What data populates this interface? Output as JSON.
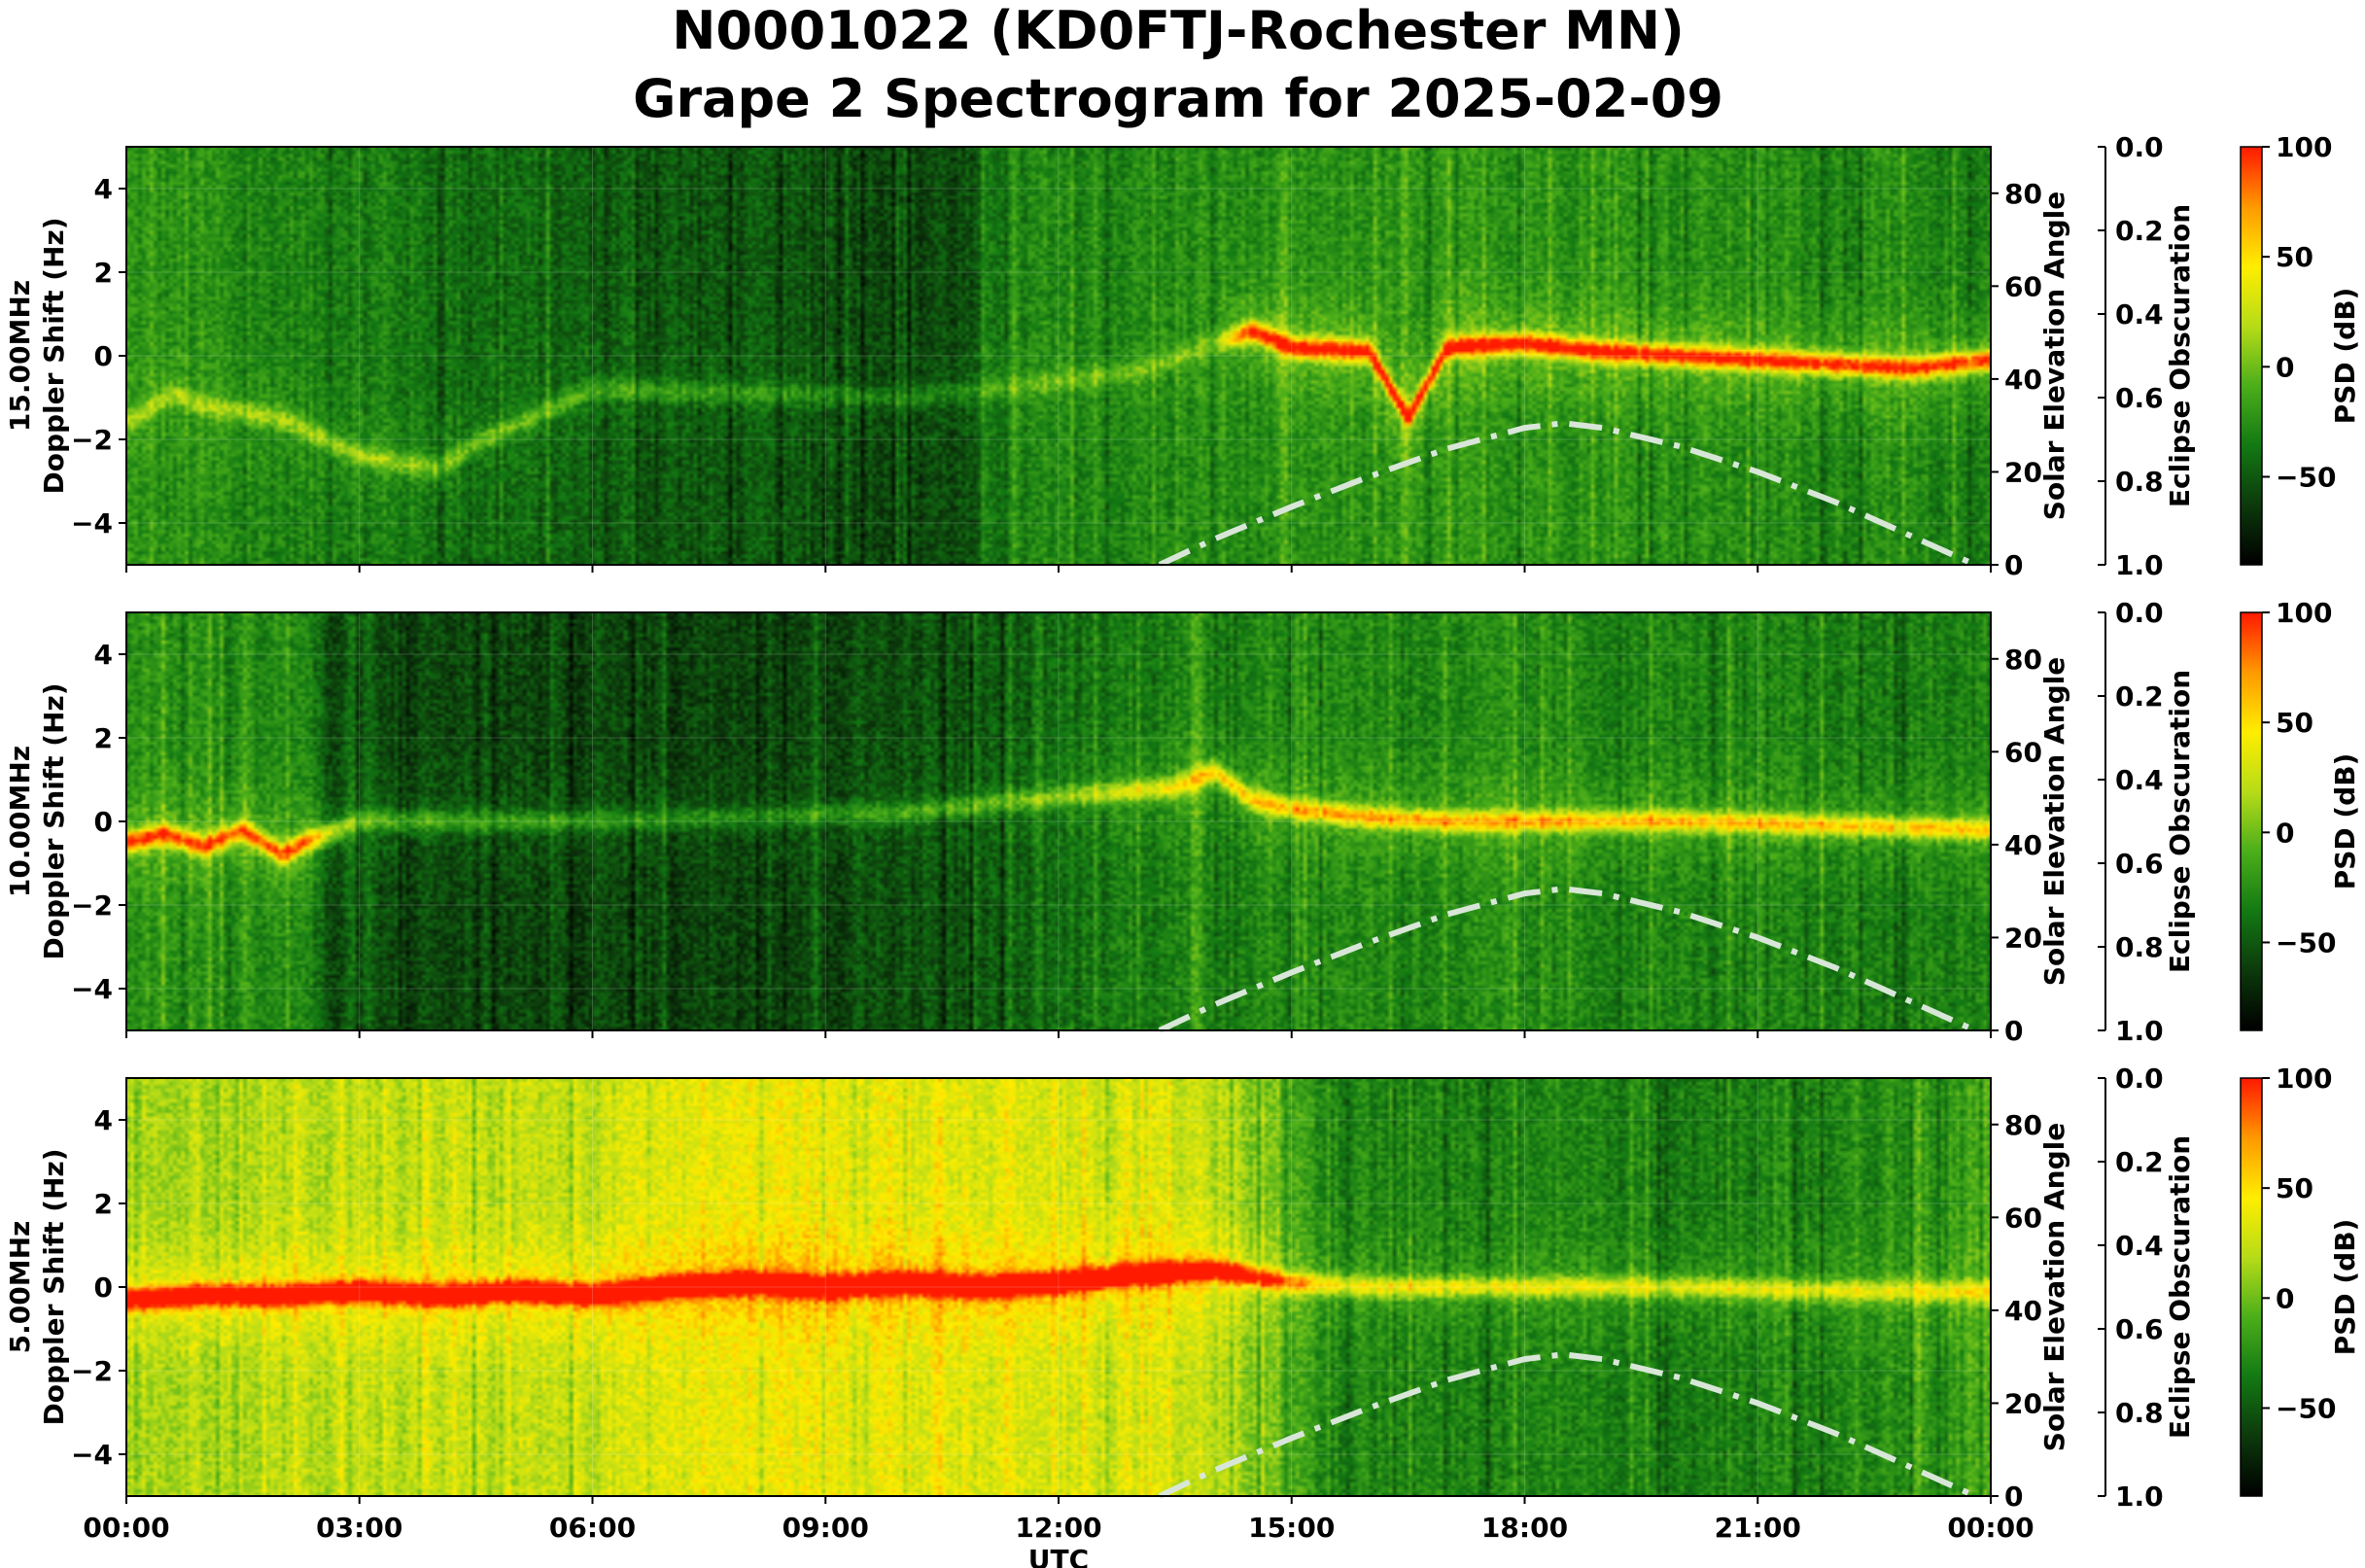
{
  "title": {
    "line1": "N0001022 (KD0FTJ-Rochester MN)",
    "line2": "Grape 2 Spectrogram for 2025-02-09"
  },
  "colors": {
    "background": "#ffffff",
    "curve": "#d8e6d8",
    "colormap": [
      "#000000",
      "#0c3a0c",
      "#137a13",
      "#4caf1a",
      "#b7dc18",
      "#ffee00",
      "#ff9a00",
      "#ff1a00"
    ]
  },
  "chart_data": [
    {
      "type": "heatmap",
      "name": "15.00MHz",
      "ylabel": "15.00MHz\nDoppler Shift (Hz)",
      "xlabel": "",
      "xlim": [
        "00:00",
        "24:00"
      ],
      "ylim": [
        -5,
        5
      ],
      "yticks": [
        -4,
        -2,
        0,
        2,
        4
      ],
      "secondary_y": {
        "label": "Solar Elevation Angle",
        "ylim": [
          0,
          90
        ],
        "ticks": [
          0,
          20,
          40,
          60,
          80
        ]
      },
      "eclipse_axis": {
        "label": "Eclipse Obscuration",
        "ylim": [
          1.0,
          0.0
        ],
        "ticks": [
          "0.0",
          "0.2",
          "0.4",
          "0.6",
          "0.8",
          "1.0"
        ]
      },
      "colorbar": {
        "label": "PSD (dB)",
        "range": [
          -90,
          100
        ],
        "ticks": [
          100,
          50,
          0,
          -50
        ]
      },
      "solar_elevation_curve": {
        "hours": [
          13.3,
          14,
          15,
          16,
          17,
          18,
          18.5,
          19,
          20,
          21,
          22,
          23,
          23.8
        ],
        "degrees": [
          0,
          5.5,
          12.5,
          19,
          25,
          29.5,
          30.5,
          29.5,
          25.5,
          20,
          13.5,
          6,
          0
        ]
      },
      "doppler_trace": {
        "hours": [
          0,
          0.6,
          1,
          2,
          3,
          4,
          4.5,
          6,
          8,
          10,
          11,
          13,
          14.5,
          15,
          16,
          16.5,
          17,
          18,
          19,
          20,
          21,
          22,
          23,
          24
        ],
        "hz": [
          -1.6,
          -0.9,
          -1.2,
          -1.5,
          -2.4,
          -2.7,
          -2.1,
          -0.8,
          -0.9,
          -1.0,
          -0.8,
          -0.4,
          0.6,
          0.2,
          0.1,
          -1.5,
          0.2,
          0.3,
          0.1,
          0.0,
          -0.1,
          -0.2,
          -0.3,
          -0.1
        ]
      },
      "trace_strength": {
        "hours": [
          0,
          3,
          10,
          14,
          14.5,
          24
        ],
        "level": [
          0.25,
          0.3,
          0.15,
          0.2,
          0.85,
          0.8
        ]
      },
      "background_level": {
        "hours": [
          0,
          1.5,
          3,
          6,
          8,
          10,
          11,
          11.05,
          14,
          18,
          22,
          24
        ],
        "level": [
          0.35,
          0.32,
          0.3,
          0.22,
          0.2,
          0.18,
          0.18,
          0.3,
          0.33,
          0.36,
          0.33,
          0.3
        ]
      }
    },
    {
      "type": "heatmap",
      "name": "10.00MHz",
      "ylabel": "10.00MHz\nDoppler Shift (Hz)",
      "xlabel": "",
      "xlim": [
        "00:00",
        "24:00"
      ],
      "ylim": [
        -5,
        5
      ],
      "yticks": [
        -4,
        -2,
        0,
        2,
        4
      ],
      "secondary_y": {
        "label": "Solar Elevation Angle",
        "ylim": [
          0,
          90
        ],
        "ticks": [
          0,
          20,
          40,
          60,
          80
        ]
      },
      "eclipse_axis": {
        "label": "Eclipse Obscuration",
        "ylim": [
          1.0,
          0.0
        ],
        "ticks": [
          "0.0",
          "0.2",
          "0.4",
          "0.6",
          "0.8",
          "1.0"
        ]
      },
      "colorbar": {
        "label": "PSD (dB)",
        "range": [
          -90,
          100
        ],
        "ticks": [
          100,
          50,
          0,
          -50
        ]
      },
      "solar_elevation_curve": {
        "hours": [
          13.3,
          14,
          15,
          16,
          17,
          18,
          18.5,
          19,
          20,
          21,
          22,
          23,
          23.8
        ],
        "degrees": [
          0,
          5.5,
          12.5,
          19,
          25,
          29.5,
          30.5,
          29.5,
          25.5,
          20,
          13.5,
          6,
          0
        ]
      },
      "doppler_trace": {
        "hours": [
          0,
          0.5,
          1,
          1.5,
          2,
          2.3,
          3,
          4,
          6,
          8,
          10,
          12,
          13.5,
          14,
          14.5,
          15,
          16,
          17,
          18,
          20,
          22,
          24
        ],
        "hz": [
          -0.5,
          -0.3,
          -0.6,
          -0.2,
          -0.8,
          -0.5,
          0.0,
          0.0,
          0.0,
          0.1,
          0.2,
          0.6,
          0.8,
          1.2,
          0.5,
          0.3,
          0.1,
          0.0,
          0.0,
          0.0,
          -0.1,
          -0.2
        ]
      },
      "trace_strength": {
        "hours": [
          0,
          2.3,
          3,
          8,
          12,
          14,
          16,
          24
        ],
        "level": [
          0.75,
          0.7,
          0.3,
          0.2,
          0.3,
          0.55,
          0.6,
          0.55
        ]
      },
      "background_level": {
        "hours": [
          0,
          2.3,
          2.6,
          6,
          9,
          11,
          13,
          15,
          18,
          22,
          24
        ],
        "level": [
          0.35,
          0.33,
          0.18,
          0.16,
          0.18,
          0.2,
          0.3,
          0.33,
          0.32,
          0.3,
          0.3
        ]
      }
    },
    {
      "type": "heatmap",
      "name": "5.00MHz",
      "ylabel": "5.00MHz\nDoppler Shift (Hz)",
      "xlabel": "UTC",
      "xlim": [
        "00:00",
        "24:00"
      ],
      "xticks": [
        "00:00",
        "03:00",
        "06:00",
        "09:00",
        "12:00",
        "15:00",
        "18:00",
        "21:00",
        "00:00"
      ],
      "ylim": [
        -5,
        5
      ],
      "yticks": [
        -4,
        -2,
        0,
        2,
        4
      ],
      "secondary_y": {
        "label": "Solar Elevation Angle",
        "ylim": [
          0,
          90
        ],
        "ticks": [
          0,
          20,
          40,
          60,
          80
        ]
      },
      "eclipse_axis": {
        "label": "Eclipse Obscuration",
        "ylim": [
          1.0,
          0.0
        ],
        "ticks": [
          "0.0",
          "0.2",
          "0.4",
          "0.6",
          "0.8",
          "1.0"
        ]
      },
      "colorbar": {
        "label": "PSD (dB)",
        "range": [
          -90,
          100
        ],
        "ticks": [
          100,
          50,
          0,
          -50
        ]
      },
      "solar_elevation_curve": {
        "hours": [
          13.3,
          14,
          15,
          16,
          17,
          18,
          18.5,
          19,
          20,
          21,
          22,
          23,
          23.8
        ],
        "degrees": [
          0,
          5.5,
          12.5,
          19,
          25,
          29.5,
          30.5,
          29.5,
          25.5,
          20,
          13.5,
          6,
          0
        ]
      },
      "doppler_trace": {
        "hours": [
          0,
          1,
          2,
          3,
          4,
          5,
          6,
          7,
          8,
          9,
          10,
          11,
          12,
          13,
          14,
          15,
          16,
          18,
          20,
          22,
          24
        ],
        "hz": [
          -0.3,
          -0.2,
          -0.2,
          -0.1,
          -0.2,
          -0.1,
          -0.2,
          0.0,
          0.1,
          0.0,
          0.1,
          0.0,
          0.1,
          0.3,
          0.4,
          0.1,
          0.0,
          0.0,
          0.0,
          -0.1,
          -0.1
        ]
      },
      "trace_strength": {
        "hours": [
          0,
          6,
          9,
          13,
          14.5,
          15.5,
          24
        ],
        "level": [
          0.85,
          0.9,
          0.95,
          0.9,
          0.7,
          0.45,
          0.4
        ]
      },
      "background_level": {
        "hours": [
          0,
          3,
          6,
          7,
          9,
          11,
          13,
          14,
          14.8,
          15.5,
          18,
          22,
          24
        ],
        "level": [
          0.55,
          0.58,
          0.6,
          0.66,
          0.68,
          0.64,
          0.62,
          0.6,
          0.45,
          0.32,
          0.3,
          0.3,
          0.4
        ]
      }
    }
  ]
}
